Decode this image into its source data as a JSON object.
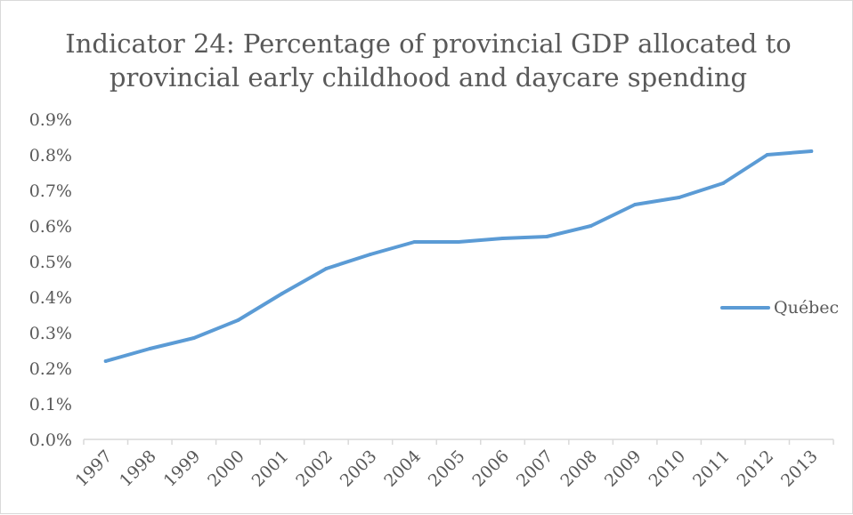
{
  "chart_data": {
    "type": "line",
    "title": [
      "Indicator 24: Percentage of provincial GDP allocated to",
      "provincial early childhood and daycare spending"
    ],
    "xlabel": "",
    "ylabel": "",
    "categories": [
      "1997",
      "1998",
      "1999",
      "2000",
      "2001",
      "2002",
      "2003",
      "2004",
      "2005",
      "2006",
      "2007",
      "2008",
      "2009",
      "2010",
      "2011",
      "2012",
      "2013"
    ],
    "series": [
      {
        "name": "Québec",
        "color": "#5b9bd5",
        "values": [
          0.22,
          0.255,
          0.285,
          0.335,
          0.41,
          0.48,
          0.52,
          0.555,
          0.555,
          0.565,
          0.57,
          0.6,
          0.66,
          0.68,
          0.72,
          0.8,
          0.81
        ]
      }
    ],
    "ylim": [
      0,
      0.9
    ],
    "ytick_labels": [
      "0.0%",
      "0.1%",
      "0.2%",
      "0.3%",
      "0.4%",
      "0.5%",
      "0.6%",
      "0.7%",
      "0.8%",
      "0.9%"
    ],
    "legend_position": "right",
    "grid": false,
    "axis_color": "#d9d9d9"
  }
}
